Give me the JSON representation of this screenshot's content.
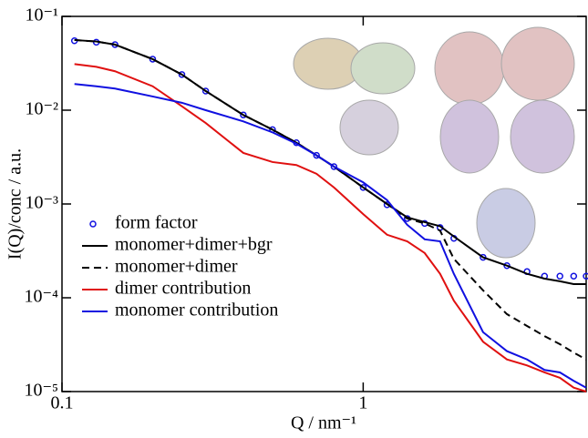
{
  "chart_data": {
    "type": "line",
    "xlabel": "Q / nm⁻¹",
    "ylabel": "I(Q)/conc / a.u.",
    "xscale": "log",
    "yscale": "log",
    "xlim": [
      0.1,
      5.5
    ],
    "ylim": [
      1e-05,
      0.1
    ],
    "xticks": [
      0.1,
      1
    ],
    "yticks": [
      {
        "value": 1e-05,
        "label": "10⁻⁵"
      },
      {
        "value": 0.0001,
        "label": "10⁻⁴"
      },
      {
        "value": 0.001,
        "label": "10⁻³"
      },
      {
        "value": 0.01,
        "label": "10⁻²"
      },
      {
        "value": 0.1,
        "label": "10⁻¹"
      }
    ],
    "legend": "center left",
    "x": [
      0.11,
      0.13,
      0.15,
      0.2,
      0.25,
      0.3,
      0.4,
      0.5,
      0.6,
      0.7,
      0.8,
      1.0,
      1.2,
      1.4,
      1.6,
      1.8,
      2.0,
      2.5,
      3.0,
      3.5,
      4.0,
      4.5,
      5.0,
      5.5
    ],
    "series": [
      {
        "name": "form factor",
        "color": "#1010e0",
        "marker": "circle",
        "values": [
          0.055,
          0.053,
          0.05,
          0.035,
          0.024,
          0.016,
          0.0089,
          0.0062,
          0.0045,
          0.0033,
          0.0025,
          0.0015,
          0.00098,
          0.0007,
          0.00062,
          0.00056,
          0.00043,
          0.00027,
          0.00022,
          0.00019,
          0.00017,
          0.00017,
          0.00017,
          0.00017
        ]
      },
      {
        "name": "monomer+dimer+bgr",
        "color": "#000000",
        "values": [
          0.056,
          0.054,
          0.05,
          0.035,
          0.024,
          0.016,
          0.0089,
          0.0062,
          0.0045,
          0.0033,
          0.0025,
          0.0015,
          0.001,
          0.00072,
          0.00064,
          0.00058,
          0.00045,
          0.00027,
          0.00022,
          0.00018,
          0.00016,
          0.00015,
          0.00014,
          0.00014
        ]
      },
      {
        "name": "monomer+dimer",
        "color": "#000000",
        "dash": true,
        "values": [
          0.056,
          0.054,
          0.05,
          0.035,
          0.024,
          0.016,
          0.0089,
          0.0062,
          0.0045,
          0.0033,
          0.0025,
          0.0015,
          0.001,
          0.0007,
          0.00062,
          0.00052,
          0.00026,
          0.00012,
          6.7e-05,
          5e-05,
          3.9e-05,
          3.2e-05,
          2.6e-05,
          2.2e-05
        ]
      },
      {
        "name": "dimer contribution",
        "color": "#e01010",
        "values": [
          0.031,
          0.029,
          0.026,
          0.018,
          0.011,
          0.0073,
          0.0035,
          0.0028,
          0.0026,
          0.0021,
          0.0015,
          0.00078,
          0.00047,
          0.0004,
          0.0003,
          0.00018,
          9.3e-05,
          3.4e-05,
          2.2e-05,
          1.9e-05,
          1.6e-05,
          1.4e-05,
          1.1e-05,
          1e-05
        ]
      },
      {
        "name": "monomer contribution",
        "color": "#1010e0",
        "values": [
          0.019,
          0.018,
          0.017,
          0.014,
          0.012,
          0.01,
          0.0076,
          0.0058,
          0.0044,
          0.0033,
          0.0025,
          0.0017,
          0.0011,
          0.0006,
          0.00042,
          0.0004,
          0.00018,
          4.3e-05,
          2.7e-05,
          2.2e-05,
          1.7e-05,
          1.6e-05,
          1.3e-05,
          1.1e-05
        ]
      }
    ]
  }
}
